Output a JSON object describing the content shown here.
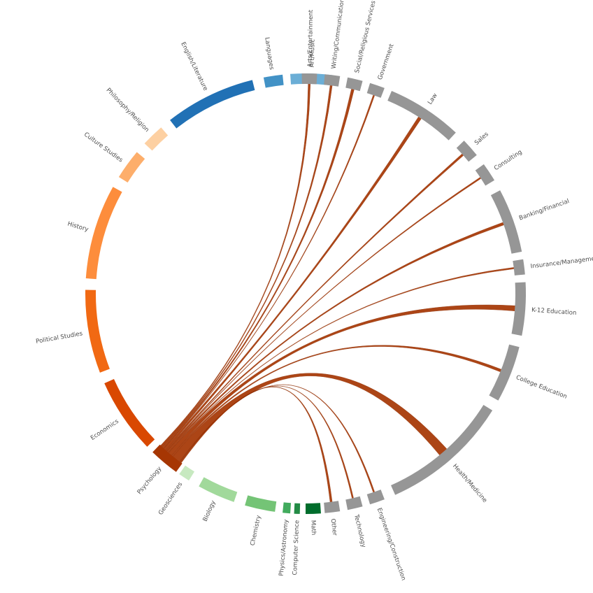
{
  "chart_data": {
    "type": "chord",
    "source_group": "Psychology",
    "majors": [
      {
        "name": "Art/Music",
        "color": "#6baed6"
      },
      {
        "name": "Languages",
        "color": "#4292c6"
      },
      {
        "name": "English/Literature",
        "color": "#2171b5"
      },
      {
        "name": "Philosophy/Religion",
        "color": "#fdd0a2"
      },
      {
        "name": "Culture Studies",
        "color": "#fdae6b"
      },
      {
        "name": "History",
        "color": "#fd8d3c"
      },
      {
        "name": "Political Studies",
        "color": "#f16913"
      },
      {
        "name": "Economics",
        "color": "#d94801"
      },
      {
        "name": "Psychology",
        "color": "#a63603"
      },
      {
        "name": "Geosciences",
        "color": "#c7e9c0"
      },
      {
        "name": "Biology",
        "color": "#a1d99b"
      },
      {
        "name": "Chemistry",
        "color": "#74c476"
      },
      {
        "name": "Physics/Astronomy",
        "color": "#41ab5d"
      },
      {
        "name": "Computer Science",
        "color": "#238b45"
      },
      {
        "name": "Math",
        "color": "#006d2c"
      }
    ],
    "careers": [
      {
        "name": "Other",
        "color": "#969696"
      },
      {
        "name": "Technology",
        "color": "#969696"
      },
      {
        "name": "Engineering/Construction",
        "color": "#969696"
      },
      {
        "name": "Health/Medicine",
        "color": "#969696"
      },
      {
        "name": "College Education",
        "color": "#969696"
      },
      {
        "name": "K-12 Education",
        "color": "#969696"
      },
      {
        "name": "Insurance/Management",
        "color": "#969696"
      },
      {
        "name": "Banking/Financial",
        "color": "#969696"
      },
      {
        "name": "Consulting",
        "color": "#969696"
      },
      {
        "name": "Sales",
        "color": "#969696"
      },
      {
        "name": "Law",
        "color": "#969696"
      },
      {
        "name": "Government",
        "color": "#969696"
      },
      {
        "name": "Social/Religious Services",
        "color": "#969696"
      },
      {
        "name": "Writing/Communication",
        "color": "#969696"
      },
      {
        "name": "Arts/Entertainment",
        "color": "#969696"
      }
    ],
    "links": [
      {
        "target": "Arts/Entertainment",
        "value": 2
      },
      {
        "target": "Writing/Communication",
        "value": 2
      },
      {
        "target": "Social/Religious Services",
        "value": 3
      },
      {
        "target": "Government",
        "value": 1
      },
      {
        "target": "Law",
        "value": 4
      },
      {
        "target": "Sales",
        "value": 2
      },
      {
        "target": "Consulting",
        "value": 1
      },
      {
        "target": "Banking/Financial",
        "value": 3
      },
      {
        "target": "Insurance/Management",
        "value": 1
      },
      {
        "target": "K-12 Education",
        "value": 7
      },
      {
        "target": "College Education",
        "value": 3
      },
      {
        "target": "Health/Medicine",
        "value": 14
      },
      {
        "target": "Engineering/Construction",
        "value": 1
      },
      {
        "target": "Technology",
        "value": 1
      },
      {
        "target": "Other",
        "value": 2
      }
    ],
    "link_color": "#a63603"
  }
}
